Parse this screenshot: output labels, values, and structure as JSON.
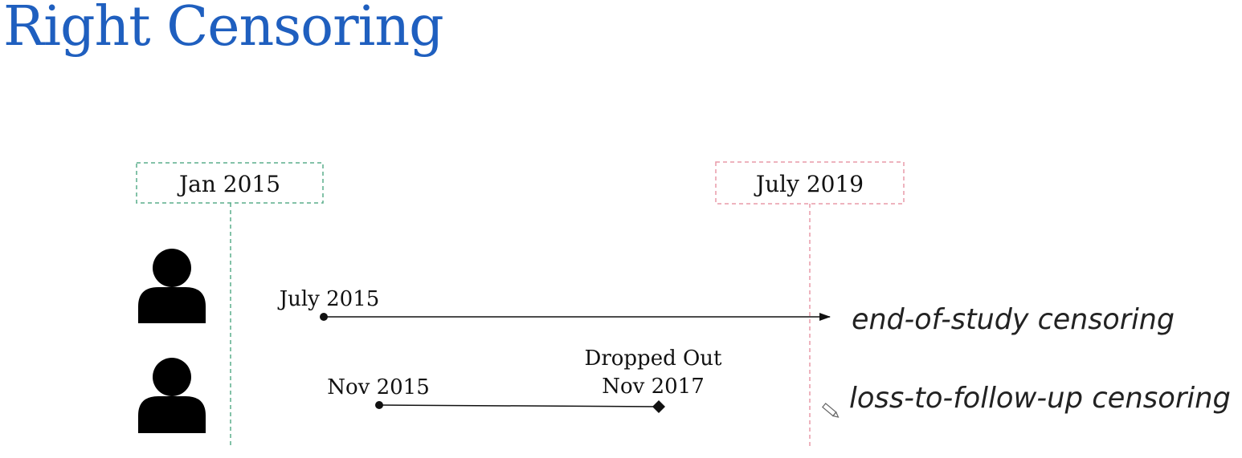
{
  "title": "Right Censoring",
  "colors": {
    "title": "#1f5fbf",
    "start_marker": "#5aae8c",
    "end_marker": "#e89aa8",
    "line": "#111111"
  },
  "markers": {
    "study_start": "Jan 2015",
    "study_end": "July 2019"
  },
  "subjects": [
    {
      "icon": "person-icon",
      "start_label": "July 2015",
      "event_label_line1": "",
      "event_label_line2": "",
      "censoring_type": "end-of-study censoring"
    },
    {
      "icon": "person-icon",
      "start_label": "Nov 2015",
      "event_label_line1": "Dropped Out",
      "event_label_line2": "Nov 2017",
      "censoring_type": "loss-to-follow-up censoring"
    }
  ],
  "annotation_icon": "pencil-icon"
}
